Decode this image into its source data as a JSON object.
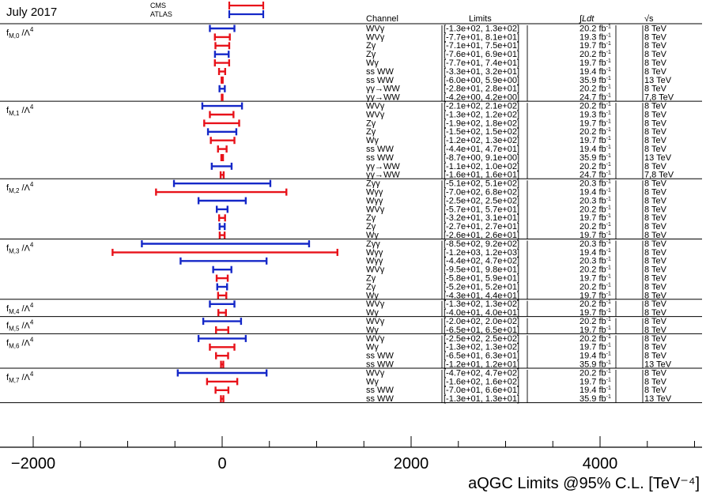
{
  "chart_data": {
    "type": "interval",
    "title": "July 2017",
    "legend": [
      {
        "name": "CMS",
        "color": "#e8121a"
      },
      {
        "name": "ATLAS",
        "color": "#1528c8"
      }
    ],
    "columns": {
      "channel": "Channel",
      "limits": "Limits",
      "lumi": "∫Ldt",
      "energy": "√s"
    },
    "xlabel": "aQGC Limits @95% C.L. [TeV⁻⁴]",
    "xlim": [
      -2400,
      5000
    ],
    "xticks": [
      -2000,
      0,
      2000,
      4000
    ],
    "grid": false,
    "groups": [
      {
        "label": "fM,0 /Λ⁴",
        "entries": [
          {
            "channel": "WVγ",
            "limits": "[-1.3e+02, 1.3e+02]",
            "lumi": "20.2 fb-1",
            "energy": "8 TeV",
            "exp": "ATLAS",
            "lo": -130,
            "hi": 130
          },
          {
            "channel": "WVγ",
            "limits": "[-7.7e+01, 8.1e+01]",
            "lumi": "19.3 fb-1",
            "energy": "8 TeV",
            "exp": "CMS",
            "lo": -77,
            "hi": 81
          },
          {
            "channel": "Zγ",
            "limits": "[-7.1e+01, 7.5e+01]",
            "lumi": "19.7 fb-1",
            "energy": "8 TeV",
            "exp": "CMS",
            "lo": -71,
            "hi": 75
          },
          {
            "channel": "Zγ",
            "limits": "[-7.6e+01, 6.9e+01]",
            "lumi": "20.2 fb-1",
            "energy": "8 TeV",
            "exp": "ATLAS",
            "lo": -76,
            "hi": 69
          },
          {
            "channel": "Wγ",
            "limits": "[-7.7e+01, 7.4e+01]",
            "lumi": "19.7 fb-1",
            "energy": "8 TeV",
            "exp": "CMS",
            "lo": -77,
            "hi": 74
          },
          {
            "channel": "ss WW",
            "limits": "[-3.3e+01, 3.2e+01]",
            "lumi": "19.4 fb-1",
            "energy": "8 TeV",
            "exp": "CMS",
            "lo": -33,
            "hi": 32
          },
          {
            "channel": "ss WW",
            "limits": "[-6.0e+00, 5.9e+00]",
            "lumi": "35.9 fb-1",
            "energy": "13 TeV",
            "exp": "CMS",
            "lo": -6.0,
            "hi": 5.9
          },
          {
            "channel": "γγ→WW",
            "limits": "[-2.8e+01, 2.8e+01]",
            "lumi": "20.2 fb-1",
            "energy": "8 TeV",
            "exp": "ATLAS",
            "lo": -28,
            "hi": 28
          },
          {
            "channel": "γγ→WW",
            "limits": "[-4.2e+00, 4.2e+00]",
            "lumi": "24.7 fb-1",
            "energy": "7,8 TeV",
            "exp": "CMS",
            "lo": -4.2,
            "hi": 4.2
          }
        ]
      },
      {
        "label": "fM,1 /Λ⁴",
        "entries": [
          {
            "channel": "WVγ",
            "limits": "[-2.1e+02, 2.1e+02]",
            "lumi": "20.2 fb-1",
            "energy": "8 TeV",
            "exp": "ATLAS",
            "lo": -210,
            "hi": 210
          },
          {
            "channel": "WVγ",
            "limits": "[-1.3e+02, 1.2e+02]",
            "lumi": "19.3 fb-1",
            "energy": "8 TeV",
            "exp": "CMS",
            "lo": -130,
            "hi": 120
          },
          {
            "channel": "Zγ",
            "limits": "[-1.9e+02, 1.8e+02]",
            "lumi": "19.7 fb-1",
            "energy": "8 TeV",
            "exp": "CMS",
            "lo": -190,
            "hi": 180
          },
          {
            "channel": "Zγ",
            "limits": "[-1.5e+02, 1.5e+02]",
            "lumi": "20.2 fb-1",
            "energy": "8 TeV",
            "exp": "ATLAS",
            "lo": -150,
            "hi": 150
          },
          {
            "channel": "Wγ",
            "limits": "[-1.2e+02, 1.3e+02]",
            "lumi": "19.7 fb-1",
            "energy": "8 TeV",
            "exp": "CMS",
            "lo": -120,
            "hi": 130
          },
          {
            "channel": "ss WW",
            "limits": "[-4.4e+01, 4.7e+01]",
            "lumi": "19.4 fb-1",
            "energy": "8 TeV",
            "exp": "CMS",
            "lo": -44,
            "hi": 47
          },
          {
            "channel": "ss WW",
            "limits": "[-8.7e+00, 9.1e+00]",
            "lumi": "35.9 fb-1",
            "energy": "13 TeV",
            "exp": "CMS",
            "lo": -8.7,
            "hi": 9.1
          },
          {
            "channel": "γγ→WW",
            "limits": "[-1.1e+02, 1.0e+02]",
            "lumi": "20.2 fb-1",
            "energy": "8 TeV",
            "exp": "ATLAS",
            "lo": -110,
            "hi": 100
          },
          {
            "channel": "γγ→WW",
            "limits": "[-1.6e+01, 1.6e+01]",
            "lumi": "24.7 fb-1",
            "energy": "7,8 TeV",
            "exp": "CMS",
            "lo": -16,
            "hi": 16
          }
        ]
      },
      {
        "label": "fM,2 /Λ⁴",
        "entries": [
          {
            "channel": "Zγγ",
            "limits": "[-5.1e+02, 5.1e+02]",
            "lumi": "20.3 fb-1",
            "energy": "8 TeV",
            "exp": "ATLAS",
            "lo": -510,
            "hi": 510
          },
          {
            "channel": "Wγγ",
            "limits": "[-7.0e+02, 6.8e+02]",
            "lumi": "19.4 fb-1",
            "energy": "8 TeV",
            "exp": "CMS",
            "lo": -700,
            "hi": 680
          },
          {
            "channel": "Wγγ",
            "limits": "[-2.5e+02, 2.5e+02]",
            "lumi": "20.3 fb-1",
            "energy": "8 TeV",
            "exp": "ATLAS",
            "lo": -250,
            "hi": 250
          },
          {
            "channel": "WVγ",
            "limits": "[-5.7e+01, 5.7e+01]",
            "lumi": "20.2 fb-1",
            "energy": "8 TeV",
            "exp": "ATLAS",
            "lo": -57,
            "hi": 57
          },
          {
            "channel": "Zγ",
            "limits": "[-3.2e+01, 3.1e+01]",
            "lumi": "19.7 fb-1",
            "energy": "8 TeV",
            "exp": "CMS",
            "lo": -32,
            "hi": 31
          },
          {
            "channel": "Zγ",
            "limits": "[-2.7e+01, 2.7e+01]",
            "lumi": "20.2 fb-1",
            "energy": "8 TeV",
            "exp": "ATLAS",
            "lo": -27,
            "hi": 27
          },
          {
            "channel": "Wγ",
            "limits": "[-2.6e+01, 2.6e+01]",
            "lumi": "19.7 fb-1",
            "energy": "8 TeV",
            "exp": "CMS",
            "lo": -26,
            "hi": 26
          }
        ]
      },
      {
        "label": "fM,3 /Λ⁴",
        "entries": [
          {
            "channel": "Zγγ",
            "limits": "[-8.5e+02, 9.2e+02]",
            "lumi": "20.3 fb-1",
            "energy": "8 TeV",
            "exp": "ATLAS",
            "lo": -850,
            "hi": 920
          },
          {
            "channel": "Wγγ",
            "limits": "[-1.2e+03, 1.2e+03]",
            "lumi": "19.4 fb-1",
            "energy": "8 TeV",
            "exp": "CMS",
            "lo": -1160,
            "hi": 1220
          },
          {
            "channel": "Wγγ",
            "limits": "[-4.4e+02, 4.7e+02]",
            "lumi": "20.3 fb-1",
            "energy": "8 TeV",
            "exp": "ATLAS",
            "lo": -440,
            "hi": 470
          },
          {
            "channel": "WVγ",
            "limits": "[-9.5e+01, 9.8e+01]",
            "lumi": "20.2 fb-1",
            "energy": "8 TeV",
            "exp": "ATLAS",
            "lo": -95,
            "hi": 98
          },
          {
            "channel": "Zγ",
            "limits": "[-5.8e+01, 5.9e+01]",
            "lumi": "19.7 fb-1",
            "energy": "8 TeV",
            "exp": "CMS",
            "lo": -58,
            "hi": 59
          },
          {
            "channel": "Zγ",
            "limits": "[-5.2e+01, 5.2e+01]",
            "lumi": "20.2 fb-1",
            "energy": "8 TeV",
            "exp": "ATLAS",
            "lo": -52,
            "hi": 52
          },
          {
            "channel": "Wγ",
            "limits": "[-4.3e+01, 4.4e+01]",
            "lumi": "19.7 fb-1",
            "energy": "8 TeV",
            "exp": "CMS",
            "lo": -43,
            "hi": 44
          }
        ]
      },
      {
        "label": "fM,4 /Λ⁴",
        "entries": [
          {
            "channel": "WVγ",
            "limits": "[-1.3e+02, 1.3e+02]",
            "lumi": "20.2 fb-1",
            "energy": "8 TeV",
            "exp": "ATLAS",
            "lo": -130,
            "hi": 130
          },
          {
            "channel": "Wγ",
            "limits": "[-4.0e+01, 4.0e+01]",
            "lumi": "19.7 fb-1",
            "energy": "8 TeV",
            "exp": "CMS",
            "lo": -40,
            "hi": 40
          }
        ]
      },
      {
        "label": "fM,5 /Λ⁴",
        "entries": [
          {
            "channel": "WVγ",
            "limits": "[-2.0e+02, 2.0e+02]",
            "lumi": "20.2 fb-1",
            "energy": "8 TeV",
            "exp": "ATLAS",
            "lo": -200,
            "hi": 200
          },
          {
            "channel": "Wγ",
            "limits": "[-6.5e+01, 6.5e+01]",
            "lumi": "19.7 fb-1",
            "energy": "8 TeV",
            "exp": "CMS",
            "lo": -65,
            "hi": 65
          }
        ]
      },
      {
        "label": "fM,6 /Λ⁴",
        "entries": [
          {
            "channel": "WVγ",
            "limits": "[-2.5e+02, 2.5e+02]",
            "lumi": "20.2 fb-1",
            "energy": "8 TeV",
            "exp": "ATLAS",
            "lo": -250,
            "hi": 250
          },
          {
            "channel": "Wγ",
            "limits": "[-1.3e+02, 1.3e+02]",
            "lumi": "19.7 fb-1",
            "energy": "8 TeV",
            "exp": "CMS",
            "lo": -130,
            "hi": 130
          },
          {
            "channel": "ss WW",
            "limits": "[-6.5e+01, 6.3e+01]",
            "lumi": "19.4 fb-1",
            "energy": "8 TeV",
            "exp": "CMS",
            "lo": -65,
            "hi": 63
          },
          {
            "channel": "ss WW",
            "limits": "[-1.2e+01, 1.2e+01]",
            "lumi": "35.9 fb-1",
            "energy": "13 TeV",
            "exp": "CMS",
            "lo": -12,
            "hi": 12
          }
        ]
      },
      {
        "label": "fM,7 /Λ⁴",
        "entries": [
          {
            "channel": "WVγ",
            "limits": "[-4.7e+02, 4.7e+02]",
            "lumi": "20.2 fb-1",
            "energy": "8 TeV",
            "exp": "ATLAS",
            "lo": -470,
            "hi": 470
          },
          {
            "channel": "Wγ",
            "limits": "[-1.6e+02, 1.6e+02]",
            "lumi": "19.7 fb-1",
            "energy": "8 TeV",
            "exp": "CMS",
            "lo": -160,
            "hi": 160
          },
          {
            "channel": "ss WW",
            "limits": "[-7.0e+01, 6.6e+01]",
            "lumi": "19.4 fb-1",
            "energy": "8 TeV",
            "exp": "CMS",
            "lo": -70,
            "hi": 66
          },
          {
            "channel": "ss WW",
            "limits": "[-1.3e+01, 1.3e+01]",
            "lumi": "35.9 fb-1",
            "energy": "13 TeV",
            "exp": "CMS",
            "lo": -13,
            "hi": 13
          }
        ]
      }
    ]
  }
}
